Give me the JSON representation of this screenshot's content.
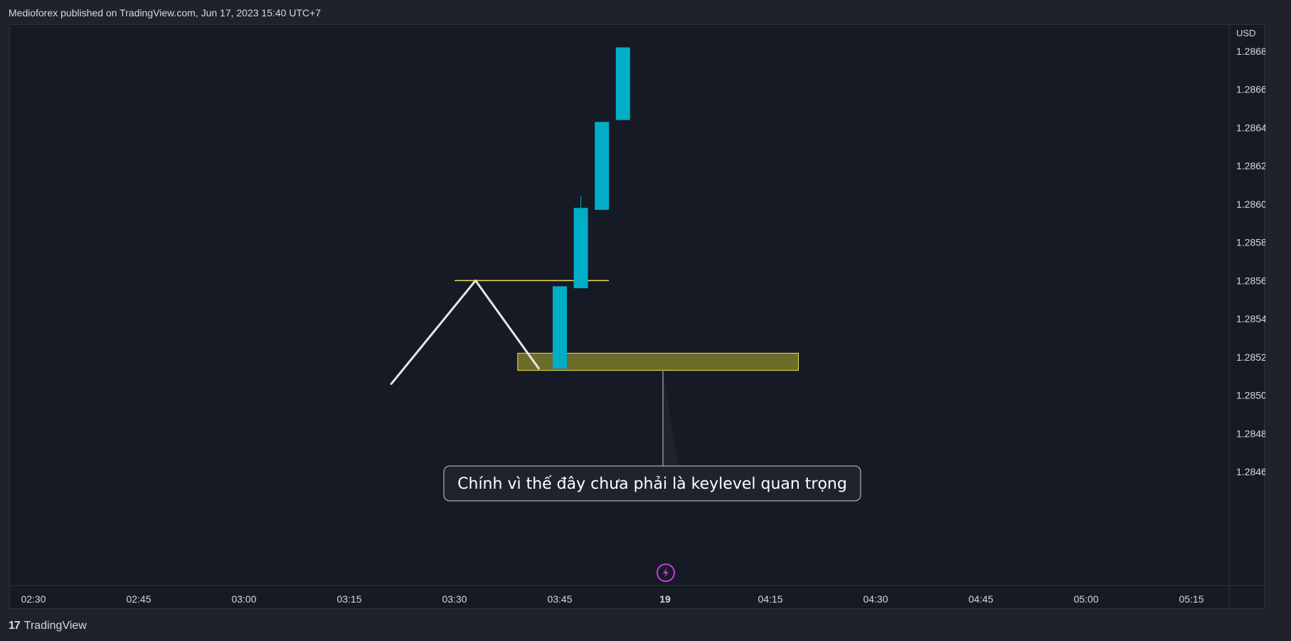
{
  "header": {
    "published_text": "Medioforex published on TradingView.com, Jun 17, 2023 15:40 UTC+7"
  },
  "footer": {
    "logo_text": "17",
    "brand": "TradingView"
  },
  "annotation": {
    "callout_text": "Chính vì thế đây chưa phải là keylevel quan trọng"
  },
  "colors": {
    "background": "#161a25",
    "candle": "#00aec8",
    "zone_fill": "#7d7a2d",
    "zone_border": "#f0e14a",
    "level_line": "#f0e14a",
    "path_line": "#e6e6e6",
    "grid_text": "#d6d8de",
    "event_icon": "#c040d8"
  },
  "chart_data": {
    "type": "candlestick",
    "currency": "USD",
    "y_ticks": [
      "1.28680",
      "1.28660",
      "1.28640",
      "1.28620",
      "1.28600",
      "1.28580",
      "1.28560",
      "1.28540",
      "1.28520",
      "1.28500",
      "1.28480",
      "1.28460"
    ],
    "x_ticks": [
      "02:30",
      "02:45",
      "03:00",
      "03:15",
      "03:30",
      "03:45",
      "19",
      "04:15",
      "04:30",
      "04:45",
      "05:00",
      "05:15"
    ],
    "ylim": [
      1.28445,
      1.28695
    ],
    "candles": [
      {
        "time": "03:45",
        "open": 1.28514,
        "high": 1.28557,
        "low": 1.28514,
        "close": 1.28557
      },
      {
        "time": "03:48",
        "open": 1.28556,
        "high": 1.28604,
        "low": 1.28556,
        "close": 1.28598
      },
      {
        "time": "03:51",
        "open": 1.28597,
        "high": 1.28643,
        "low": 1.28597,
        "close": 1.28643
      },
      {
        "time": "03:54",
        "open": 1.28644,
        "high": 1.28682,
        "low": 1.28644,
        "close": 1.28682
      }
    ],
    "drawings": {
      "swing_path": [
        {
          "time": "03:21",
          "price": 1.28506
        },
        {
          "time": "03:33",
          "price": 1.2856
        },
        {
          "time": "03:42",
          "price": 1.28514
        }
      ],
      "level_line": {
        "price": 1.2856,
        "from": "03:30",
        "to": "03:52"
      },
      "zone": {
        "price_top": 1.28522,
        "price_bottom": 1.28513,
        "from": "03:39",
        "to": "04:19"
      }
    }
  }
}
